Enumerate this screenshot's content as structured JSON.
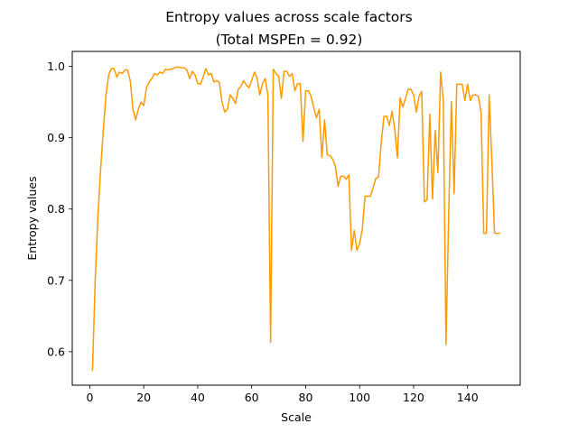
{
  "chart_data": {
    "type": "line",
    "title": "Entropy values across scale factors",
    "subtitle": "(Total MSPEn = 0.92)",
    "xlabel": "Scale",
    "ylabel": "Entropy values",
    "xlim": [
      -6.5,
      159.5
    ],
    "ylim": [
      0.553,
      1.021
    ],
    "xticks": [
      0,
      20,
      40,
      60,
      80,
      100,
      120,
      140
    ],
    "yticks": [
      0.6,
      0.7,
      0.8,
      0.9,
      1.0
    ],
    "xtick_labels": [
      "0",
      "20",
      "40",
      "60",
      "80",
      "100",
      "120",
      "140"
    ],
    "ytick_labels": [
      "0.6",
      "0.7",
      "0.8",
      "0.9",
      "1.0"
    ],
    "grid": false,
    "legend": "none",
    "series": [
      {
        "color": "#ff9900",
        "x": [
          1,
          2,
          3,
          4,
          5,
          6,
          7,
          8,
          9,
          10,
          11,
          12,
          13,
          14,
          15,
          16,
          17,
          18,
          19,
          20,
          21,
          22,
          23,
          24,
          25,
          26,
          27,
          28,
          29,
          30,
          31,
          32,
          33,
          34,
          35,
          36,
          37,
          38,
          39,
          40,
          41,
          42,
          43,
          44,
          45,
          46,
          47,
          48,
          49,
          50,
          51,
          52,
          53,
          54,
          55,
          56,
          57,
          58,
          59,
          60,
          61,
          62,
          63,
          64,
          65,
          66,
          67,
          68,
          69,
          70,
          71,
          72,
          73,
          74,
          75,
          76,
          77,
          78,
          79,
          80,
          81,
          82,
          83,
          84,
          85,
          86,
          87,
          88,
          89,
          90,
          91,
          92,
          93,
          94,
          95,
          96,
          97,
          98,
          99,
          100,
          101,
          102,
          103,
          104,
          105,
          106,
          107,
          108,
          109,
          110,
          111,
          112,
          113,
          114,
          115,
          116,
          117,
          118,
          119,
          120,
          121,
          122,
          123,
          124,
          125,
          126,
          127,
          128,
          129,
          130,
          131,
          132,
          133,
          134,
          135,
          136,
          137,
          138,
          139,
          140,
          141,
          142,
          143,
          144,
          145,
          146,
          147,
          148,
          149,
          150,
          151,
          152
        ],
        "y": [
          0.573,
          0.7,
          0.79,
          0.855,
          0.91,
          0.96,
          0.988,
          0.997,
          0.997,
          0.985,
          0.992,
          0.99,
          0.995,
          0.995,
          0.98,
          0.94,
          0.925,
          0.94,
          0.95,
          0.945,
          0.97,
          0.978,
          0.983,
          0.99,
          0.988,
          0.992,
          0.99,
          0.996,
          0.995,
          0.996,
          0.997,
          0.999,
          0.999,
          0.998,
          0.998,
          0.995,
          0.983,
          0.993,
          0.988,
          0.976,
          0.975,
          0.985,
          0.997,
          0.988,
          0.99,
          0.978,
          0.98,
          0.978,
          0.95,
          0.936,
          0.94,
          0.96,
          0.955,
          0.948,
          0.968,
          0.972,
          0.98,
          0.974,
          0.97,
          0.98,
          0.992,
          0.984,
          0.96,
          0.976,
          0.983,
          0.96,
          0.613,
          0.996,
          0.99,
          0.986,
          0.955,
          0.993,
          0.993,
          0.986,
          0.99,
          0.966,
          0.976,
          0.976,
          0.895,
          0.966,
          0.966,
          0.958,
          0.942,
          0.928,
          0.94,
          0.872,
          0.925,
          0.876,
          0.875,
          0.87,
          0.86,
          0.832,
          0.846,
          0.846,
          0.842,
          0.848,
          0.742,
          0.77,
          0.742,
          0.752,
          0.772,
          0.818,
          0.818,
          0.818,
          0.83,
          0.843,
          0.845,
          0.893,
          0.93,
          0.93,
          0.917,
          0.937,
          0.912,
          0.872,
          0.956,
          0.943,
          0.955,
          0.968,
          0.968,
          0.96,
          0.936,
          0.958,
          0.965,
          0.81,
          0.813,
          0.933,
          0.814,
          0.91,
          0.851,
          0.992,
          0.953,
          0.61,
          0.792,
          0.951,
          0.822,
          0.975,
          0.975,
          0.975,
          0.952,
          0.975,
          0.952,
          0.96,
          0.96,
          0.958,
          0.935,
          0.766,
          0.766,
          0.96,
          0.866,
          0.766,
          0.766,
          0.766
        ]
      }
    ]
  }
}
